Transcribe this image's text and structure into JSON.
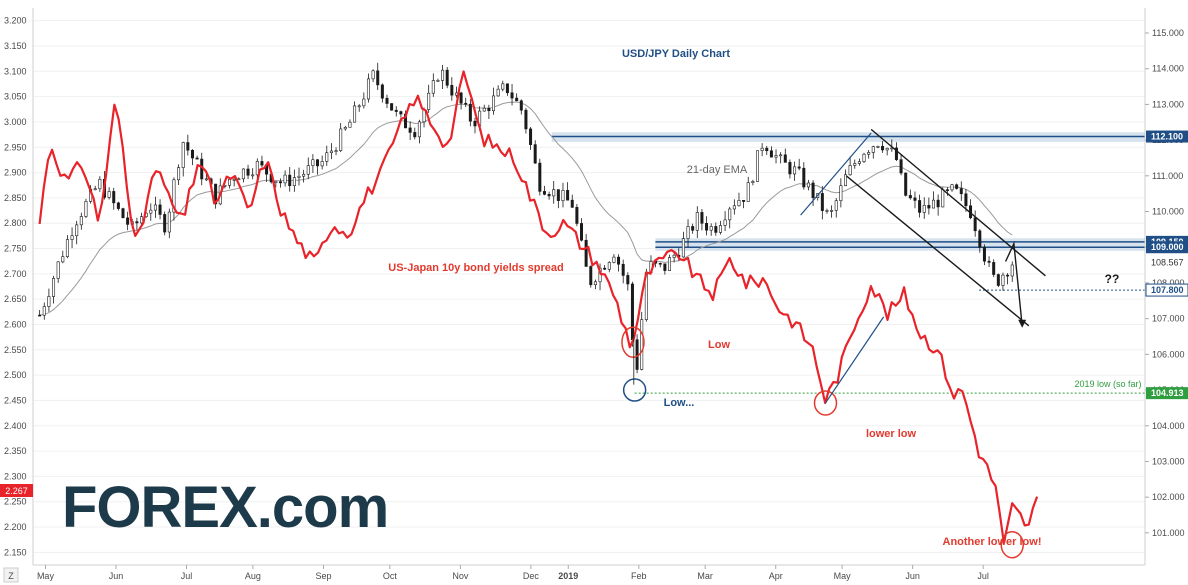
{
  "chart_data": {
    "type": "line",
    "title": "USD/JPY Daily Chart",
    "watermark": "FOREX.com",
    "left_axis": {
      "label": "US-Japan 10y bond yields spread",
      "ticks": [
        "3.200",
        "3.150",
        "3.100",
        "3.050",
        "3.000",
        "2.950",
        "2.900",
        "2.850",
        "2.800",
        "2.750",
        "2.700",
        "2.650",
        "2.600",
        "2.550",
        "2.500",
        "2.450",
        "2.400",
        "2.350",
        "2.300",
        "2.250",
        "2.200",
        "2.150"
      ],
      "range": [
        2.125,
        3.225
      ],
      "last_value": "2.267",
      "scale_label": "Z"
    },
    "right_axis": {
      "ticks": [
        "115.000",
        "114.000",
        "113.000",
        "112.000",
        "111.000",
        "110.000",
        "109.000",
        "108.000",
        "107.000",
        "106.000",
        "105.000",
        "104.000",
        "103.000",
        "102.000",
        "101.000"
      ],
      "range": [
        100.1,
        115.7
      ],
      "levels": [
        {
          "label": "112.100",
          "value": 112.1,
          "style": "dark"
        },
        {
          "label": "109.150",
          "value": 109.15,
          "style": "dark"
        },
        {
          "label": "109.000",
          "value": 109.0,
          "style": "dark"
        },
        {
          "label": "108.567",
          "value": 108.567,
          "style": "plain"
        },
        {
          "label": "107.800",
          "value": 107.8,
          "style": "white"
        },
        {
          "label": "104.913",
          "value": 104.913,
          "style": "green"
        }
      ]
    },
    "x_axis": {
      "labels": [
        "May",
        "Jun",
        "Jul",
        "Aug",
        "Sep",
        "Oct",
        "Nov",
        "Dec",
        "2019",
        "Feb",
        "Mar",
        "Apr",
        "May",
        "Jun",
        "Jul"
      ],
      "bold": [
        "2019"
      ],
      "range": [
        2018.28,
        2019.62
      ]
    },
    "series": [
      {
        "name": "US-Japan 10y bond yields spread",
        "axis": "left",
        "color": "#e8232a",
        "x": [
          2018.288,
          2018.3,
          2018.32,
          2018.34,
          2018.36,
          2018.38,
          2018.4,
          2018.415,
          2018.43,
          2018.44,
          2018.46,
          2018.48,
          2018.5,
          2018.52,
          2018.54,
          2018.56,
          2018.58,
          2018.6,
          2018.62,
          2018.64,
          2018.66,
          2018.68,
          2018.7,
          2018.72,
          2018.74,
          2018.76,
          2018.78,
          2018.8,
          2018.82,
          2018.84,
          2018.86,
          2018.88,
          2018.9,
          2018.92,
          2018.94,
          2018.96,
          2018.98,
          2019.0,
          2019.005,
          2019.02,
          2019.04,
          2019.06,
          2019.08,
          2019.1,
          2019.12,
          2019.14,
          2019.16,
          2019.18,
          2019.2,
          2019.22,
          2019.235,
          2019.25,
          2019.27,
          2019.29,
          2019.31,
          2019.33,
          2019.35,
          2019.37,
          2019.39,
          2019.4,
          2019.42,
          2019.44,
          2019.45,
          2019.46,
          2019.48,
          2019.49
        ],
        "values": [
          2.8,
          2.96,
          2.88,
          2.92,
          2.8,
          3.05,
          2.78,
          2.82,
          2.92,
          2.86,
          2.8,
          2.93,
          2.84,
          2.9,
          2.82,
          2.93,
          2.82,
          2.76,
          2.72,
          2.8,
          2.78,
          2.85,
          2.9,
          2.98,
          3.05,
          3.0,
          2.95,
          3.1,
          2.97,
          2.95,
          2.93,
          2.85,
          2.78,
          2.8,
          2.76,
          2.72,
          2.66,
          2.56,
          2.58,
          2.7,
          2.73,
          2.74,
          2.69,
          2.66,
          2.73,
          2.68,
          2.69,
          2.63,
          2.6,
          2.55,
          2.45,
          2.5,
          2.6,
          2.68,
          2.62,
          2.66,
          2.58,
          2.55,
          2.46,
          2.47,
          2.35,
          2.28,
          2.16,
          2.24,
          2.2,
          2.26
        ]
      },
      {
        "name": "USD/JPY",
        "axis": "right",
        "color": "#1a1a1a",
        "x": [
          2018.288,
          2018.31,
          2018.33,
          2018.36,
          2018.38,
          2018.4,
          2018.42,
          2018.44,
          2018.46,
          2018.48,
          2018.5,
          2018.52,
          2018.55,
          2018.58,
          2018.6,
          2018.63,
          2018.66,
          2018.69,
          2018.72,
          2018.74,
          2018.76,
          2018.77,
          2018.79,
          2018.81,
          2018.83,
          2018.85,
          2018.87,
          2018.89,
          2018.91,
          2018.93,
          2018.95,
          2018.98,
          2019.0,
          2019.005,
          2019.02,
          2019.04,
          2019.06,
          2019.08,
          2019.1,
          2019.12,
          2019.14,
          2019.16,
          2019.18,
          2019.2,
          2019.22,
          2019.24,
          2019.26,
          2019.28,
          2019.3,
          2019.32,
          2019.33,
          2019.35,
          2019.37,
          2019.39,
          2019.41,
          2019.42,
          2019.43,
          2019.44,
          2019.45,
          2019.46
        ],
        "values": [
          107.1,
          108.5,
          109.7,
          110.8,
          110.1,
          109.5,
          110.2,
          109.6,
          112.0,
          111.2,
          110.4,
          111.0,
          111.3,
          110.8,
          111.0,
          111.4,
          112.4,
          113.8,
          112.6,
          112.3,
          113.3,
          114.0,
          113.2,
          112.5,
          113.0,
          113.5,
          112.8,
          110.8,
          110.5,
          110.2,
          108.0,
          108.9,
          107.7,
          105.0,
          108.5,
          108.4,
          109.0,
          109.8,
          109.5,
          110.2,
          110.5,
          112.0,
          111.4,
          111.1,
          110.5,
          109.8,
          111.0,
          111.7,
          112.0,
          111.5,
          110.5,
          110.0,
          110.3,
          110.6,
          110.0,
          109.3,
          108.5,
          108.0,
          108.3,
          108.567
        ]
      }
    ],
    "ema_label": "21-day EMA",
    "annotations": {
      "low": "Low",
      "low_ellipsis": "Low...",
      "lower_low": "lower low",
      "another": "Another lower low!",
      "question": "??",
      "low_2019": "2019 low (so far)"
    },
    "colors": {
      "spread": "#e8232a",
      "price": "#1a1a1a",
      "ema": "#9a9a9a",
      "resistance_zone": "#d6e3ee",
      "level_dark": "#1f4f86",
      "level_green": "#2e9e3f",
      "circle_red": "#e23a2e",
      "circle_blue": "#1f4f86",
      "logo_dark": "#1d3a4a",
      "logo_green": "#5fbf4a"
    }
  }
}
